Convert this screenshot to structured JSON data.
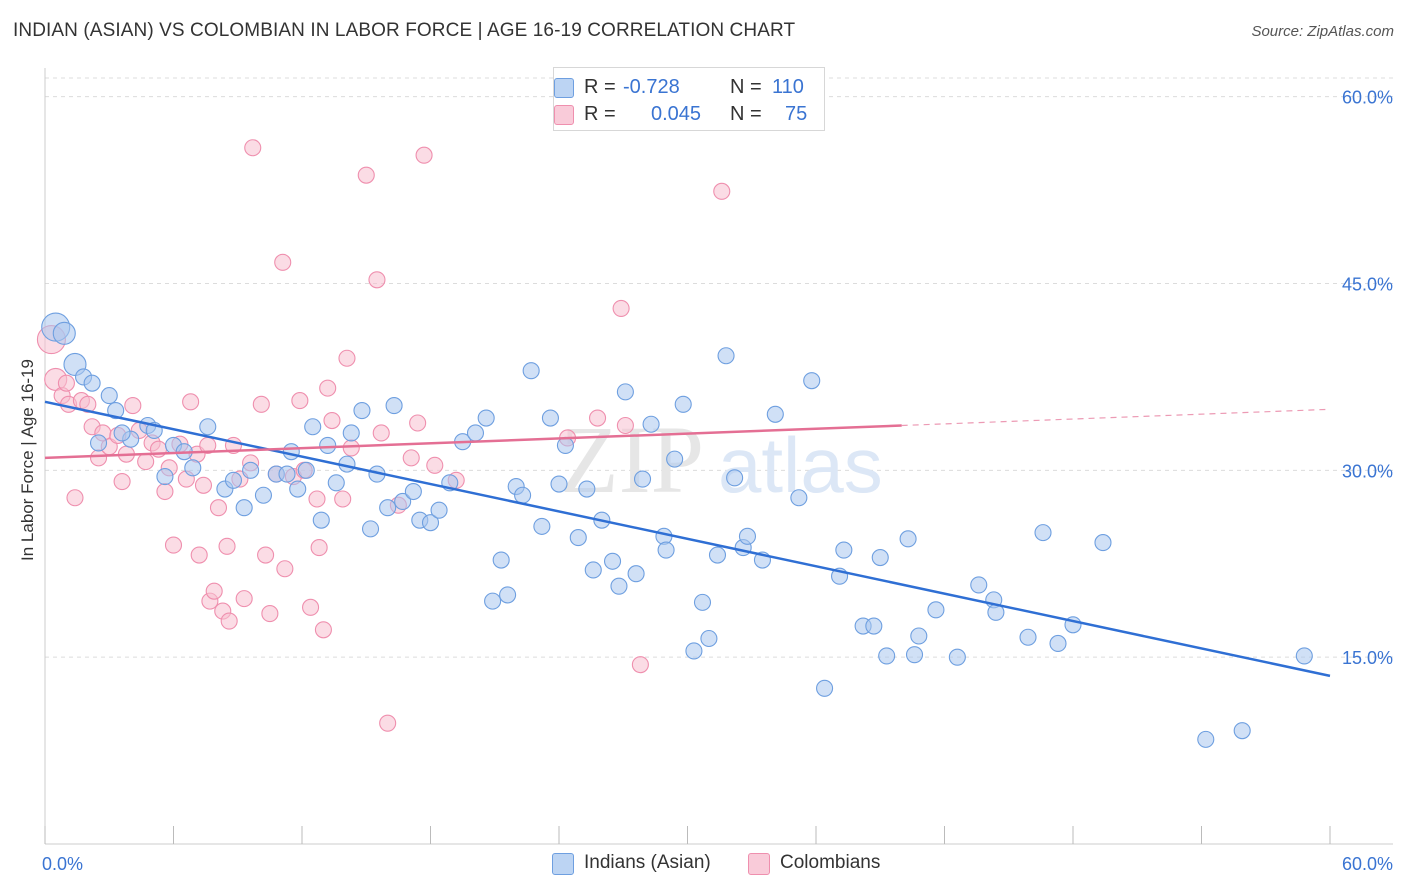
{
  "title": "INDIAN (ASIAN) VS COLOMBIAN IN LABOR FORCE | AGE 16-19 CORRELATION CHART",
  "source": "Source: ZipAtlas.com",
  "colors": {
    "blue_fill": "#a9c7ee",
    "blue_stroke": "#6e9fe0",
    "blue_line": "#2f6fd4",
    "pink_fill": "#f7bfd0",
    "pink_stroke": "#ef8fae",
    "pink_line": "#e46f94",
    "tick_label": "#3a74d2",
    "grid": "#dcdcdc"
  },
  "legend": {
    "r_label": "R =",
    "n_label": "N =",
    "rows": [
      {
        "r": "-0.728",
        "n": "110"
      },
      {
        "r": "0.045",
        "n": "75"
      }
    ]
  },
  "bottom_legend": [
    "Indians (Asian)",
    "Colombians"
  ],
  "watermark": {
    "part1": "ZIP",
    "part2": "atlas"
  },
  "chart_data": {
    "type": "scatter",
    "title": "INDIAN (ASIAN) VS COLOMBIAN IN LABOR FORCE | AGE 16-19 CORRELATION CHART",
    "xlabel": "",
    "ylabel": "In Labor Force | Age 16-19",
    "xlim": [
      0,
      60
    ],
    "ylim": [
      0,
      61.5
    ],
    "x_tick_labels": [
      "0.0%",
      "60.0%"
    ],
    "y_ticks": [
      15,
      30,
      45,
      60
    ],
    "y_tick_labels": [
      "15.0%",
      "30.0%",
      "45.0%",
      "60.0%"
    ],
    "grid": true,
    "series": [
      {
        "name": "Indians (Asian)",
        "r": -0.728,
        "n": 110,
        "trend": {
          "x": [
            0,
            60
          ],
          "y": [
            35.5,
            13.5
          ],
          "dashed_from": null
        },
        "points": [
          {
            "x": 0.5,
            "y": 41.5,
            "s": 3
          },
          {
            "x": 0.9,
            "y": 41,
            "s": 2
          },
          {
            "x": 1.4,
            "y": 38.5,
            "s": 2
          },
          {
            "x": 1.8,
            "y": 37.5,
            "s": 1
          },
          {
            "x": 2.2,
            "y": 37,
            "s": 1
          },
          {
            "x": 3,
            "y": 36,
            "s": 1
          },
          {
            "x": 3.3,
            "y": 34.8,
            "s": 1
          },
          {
            "x": 4.8,
            "y": 33.6,
            "s": 1
          },
          {
            "x": 5.1,
            "y": 33.2,
            "s": 1
          },
          {
            "x": 7.6,
            "y": 33.5,
            "s": 1
          },
          {
            "x": 2.5,
            "y": 32.2,
            "s": 1
          },
          {
            "x": 4,
            "y": 32.5,
            "s": 1
          },
          {
            "x": 6,
            "y": 32,
            "s": 1
          },
          {
            "x": 6.5,
            "y": 31.5,
            "s": 1
          },
          {
            "x": 3.6,
            "y": 33,
            "s": 1
          },
          {
            "x": 5.6,
            "y": 29.5,
            "s": 1
          },
          {
            "x": 6.9,
            "y": 30.2,
            "s": 1
          },
          {
            "x": 8.4,
            "y": 28.5,
            "s": 1
          },
          {
            "x": 8.8,
            "y": 29.2,
            "s": 1
          },
          {
            "x": 9.3,
            "y": 27,
            "s": 1
          },
          {
            "x": 9.6,
            "y": 30,
            "s": 1
          },
          {
            "x": 10.2,
            "y": 28,
            "s": 1
          },
          {
            "x": 10.8,
            "y": 29.7,
            "s": 1
          },
          {
            "x": 11.3,
            "y": 29.7,
            "s": 1
          },
          {
            "x": 11.5,
            "y": 31.5,
            "s": 1
          },
          {
            "x": 11.8,
            "y": 28.5,
            "s": 1
          },
          {
            "x": 12.2,
            "y": 30,
            "s": 1
          },
          {
            "x": 12.5,
            "y": 33.5,
            "s": 1
          },
          {
            "x": 12.9,
            "y": 26,
            "s": 1
          },
          {
            "x": 13.2,
            "y": 32,
            "s": 1
          },
          {
            "x": 13.6,
            "y": 29,
            "s": 1
          },
          {
            "x": 14.1,
            "y": 30.5,
            "s": 1
          },
          {
            "x": 14.3,
            "y": 33,
            "s": 1
          },
          {
            "x": 14.8,
            "y": 34.8,
            "s": 1
          },
          {
            "x": 15.2,
            "y": 25.3,
            "s": 1
          },
          {
            "x": 15.5,
            "y": 29.7,
            "s": 1
          },
          {
            "x": 16,
            "y": 27,
            "s": 1
          },
          {
            "x": 16.3,
            "y": 35.2,
            "s": 1
          },
          {
            "x": 16.7,
            "y": 27.5,
            "s": 1
          },
          {
            "x": 17.2,
            "y": 28.3,
            "s": 1
          },
          {
            "x": 17.5,
            "y": 26,
            "s": 1
          },
          {
            "x": 18,
            "y": 25.8,
            "s": 1
          },
          {
            "x": 18.4,
            "y": 26.8,
            "s": 1
          },
          {
            "x": 18.9,
            "y": 29,
            "s": 1
          },
          {
            "x": 19.5,
            "y": 32.3,
            "s": 1
          },
          {
            "x": 20.1,
            "y": 33,
            "s": 1
          },
          {
            "x": 20.6,
            "y": 34.2,
            "s": 1
          },
          {
            "x": 20.9,
            "y": 19.5,
            "s": 1
          },
          {
            "x": 21.3,
            "y": 22.8,
            "s": 1
          },
          {
            "x": 21.6,
            "y": 20,
            "s": 1
          },
          {
            "x": 22,
            "y": 28.7,
            "s": 1
          },
          {
            "x": 22.3,
            "y": 28,
            "s": 1
          },
          {
            "x": 22.7,
            "y": 38,
            "s": 1
          },
          {
            "x": 23.2,
            "y": 25.5,
            "s": 1
          },
          {
            "x": 23.6,
            "y": 34.2,
            "s": 1
          },
          {
            "x": 24,
            "y": 28.9,
            "s": 1
          },
          {
            "x": 24.3,
            "y": 32,
            "s": 1
          },
          {
            "x": 24.9,
            "y": 24.6,
            "s": 1
          },
          {
            "x": 25.3,
            "y": 28.5,
            "s": 1
          },
          {
            "x": 25.6,
            "y": 22,
            "s": 1
          },
          {
            "x": 26,
            "y": 26,
            "s": 1
          },
          {
            "x": 26.5,
            "y": 22.7,
            "s": 1
          },
          {
            "x": 26.8,
            "y": 20.7,
            "s": 1
          },
          {
            "x": 27.1,
            "y": 36.3,
            "s": 1
          },
          {
            "x": 27.6,
            "y": 21.7,
            "s": 1
          },
          {
            "x": 27.9,
            "y": 29.3,
            "s": 1
          },
          {
            "x": 28.3,
            "y": 33.7,
            "s": 1
          },
          {
            "x": 28.9,
            "y": 24.7,
            "s": 1
          },
          {
            "x": 29,
            "y": 23.6,
            "s": 1
          },
          {
            "x": 29.4,
            "y": 30.9,
            "s": 1
          },
          {
            "x": 29.8,
            "y": 35.3,
            "s": 1
          },
          {
            "x": 30.3,
            "y": 15.5,
            "s": 1
          },
          {
            "x": 30.7,
            "y": 19.4,
            "s": 1
          },
          {
            "x": 31,
            "y": 16.5,
            "s": 1
          },
          {
            "x": 31.4,
            "y": 23.2,
            "s": 1
          },
          {
            "x": 31.8,
            "y": 39.2,
            "s": 1
          },
          {
            "x": 32.2,
            "y": 29.4,
            "s": 1
          },
          {
            "x": 32.6,
            "y": 23.8,
            "s": 1
          },
          {
            "x": 32.8,
            "y": 24.7,
            "s": 1
          },
          {
            "x": 33.5,
            "y": 22.8,
            "s": 1
          },
          {
            "x": 34.1,
            "y": 34.5,
            "s": 1
          },
          {
            "x": 35.2,
            "y": 27.8,
            "s": 1
          },
          {
            "x": 35.8,
            "y": 37.2,
            "s": 1
          },
          {
            "x": 36.4,
            "y": 12.5,
            "s": 1
          },
          {
            "x": 37.1,
            "y": 21.5,
            "s": 1
          },
          {
            "x": 37.3,
            "y": 23.6,
            "s": 1
          },
          {
            "x": 38.2,
            "y": 17.5,
            "s": 1
          },
          {
            "x": 38.7,
            "y": 17.5,
            "s": 1
          },
          {
            "x": 39,
            "y": 23,
            "s": 1
          },
          {
            "x": 39.3,
            "y": 15.1,
            "s": 1
          },
          {
            "x": 40.3,
            "y": 24.5,
            "s": 1
          },
          {
            "x": 40.6,
            "y": 15.2,
            "s": 1
          },
          {
            "x": 40.8,
            "y": 16.7,
            "s": 1
          },
          {
            "x": 41.6,
            "y": 18.8,
            "s": 1
          },
          {
            "x": 42.6,
            "y": 15,
            "s": 1
          },
          {
            "x": 43.6,
            "y": 20.8,
            "s": 1
          },
          {
            "x": 44.3,
            "y": 19.6,
            "s": 1
          },
          {
            "x": 44.4,
            "y": 18.6,
            "s": 1
          },
          {
            "x": 45.9,
            "y": 16.6,
            "s": 1
          },
          {
            "x": 46.6,
            "y": 25,
            "s": 1
          },
          {
            "x": 47.3,
            "y": 16.1,
            "s": 1
          },
          {
            "x": 48,
            "y": 17.6,
            "s": 1
          },
          {
            "x": 49.4,
            "y": 24.2,
            "s": 1
          },
          {
            "x": 54.2,
            "y": 8.4,
            "s": 1
          },
          {
            "x": 55.9,
            "y": 9.1,
            "s": 1
          },
          {
            "x": 58.8,
            "y": 15.1,
            "s": 1
          }
        ]
      },
      {
        "name": "Colombians",
        "r": 0.045,
        "n": 75,
        "trend": {
          "x": [
            0,
            60
          ],
          "y": [
            31,
            34.9
          ],
          "dashed_from": 40
        },
        "points": [
          {
            "x": 0.3,
            "y": 40.5,
            "s": 3
          },
          {
            "x": 0.5,
            "y": 37.3,
            "s": 2
          },
          {
            "x": 0.8,
            "y": 36,
            "s": 1
          },
          {
            "x": 1,
            "y": 37,
            "s": 1
          },
          {
            "x": 1.1,
            "y": 35.3,
            "s": 1
          },
          {
            "x": 1.4,
            "y": 27.8,
            "s": 1
          },
          {
            "x": 1.7,
            "y": 35.6,
            "s": 1
          },
          {
            "x": 2,
            "y": 35.3,
            "s": 1
          },
          {
            "x": 2.2,
            "y": 33.5,
            "s": 1
          },
          {
            "x": 2.5,
            "y": 31,
            "s": 1
          },
          {
            "x": 2.7,
            "y": 33,
            "s": 1
          },
          {
            "x": 3,
            "y": 31.9,
            "s": 1
          },
          {
            "x": 3.4,
            "y": 32.8,
            "s": 1
          },
          {
            "x": 3.6,
            "y": 29.1,
            "s": 1
          },
          {
            "x": 3.8,
            "y": 31.3,
            "s": 1
          },
          {
            "x": 4.1,
            "y": 35.2,
            "s": 1
          },
          {
            "x": 4.4,
            "y": 33.2,
            "s": 1
          },
          {
            "x": 4.7,
            "y": 30.7,
            "s": 1
          },
          {
            "x": 5,
            "y": 32.2,
            "s": 1
          },
          {
            "x": 5.3,
            "y": 31.7,
            "s": 1
          },
          {
            "x": 5.6,
            "y": 28.3,
            "s": 1
          },
          {
            "x": 5.8,
            "y": 30.2,
            "s": 1
          },
          {
            "x": 6,
            "y": 24,
            "s": 1
          },
          {
            "x": 6.3,
            "y": 32.1,
            "s": 1
          },
          {
            "x": 6.6,
            "y": 29.3,
            "s": 1
          },
          {
            "x": 6.8,
            "y": 35.5,
            "s": 1
          },
          {
            "x": 7.1,
            "y": 31.3,
            "s": 1
          },
          {
            "x": 7.2,
            "y": 23.2,
            "s": 1
          },
          {
            "x": 7.4,
            "y": 28.8,
            "s": 1
          },
          {
            "x": 7.6,
            "y": 32,
            "s": 1
          },
          {
            "x": 7.7,
            "y": 19.5,
            "s": 1
          },
          {
            "x": 7.9,
            "y": 20.3,
            "s": 1
          },
          {
            "x": 8.1,
            "y": 27,
            "s": 1
          },
          {
            "x": 8.3,
            "y": 18.7,
            "s": 1
          },
          {
            "x": 8.5,
            "y": 23.9,
            "s": 1
          },
          {
            "x": 8.6,
            "y": 17.9,
            "s": 1
          },
          {
            "x": 8.8,
            "y": 32,
            "s": 1
          },
          {
            "x": 9.1,
            "y": 29.3,
            "s": 1
          },
          {
            "x": 9.3,
            "y": 19.7,
            "s": 1
          },
          {
            "x": 9.6,
            "y": 30.6,
            "s": 1
          },
          {
            "x": 9.7,
            "y": 55.9,
            "s": 1
          },
          {
            "x": 10.1,
            "y": 35.3,
            "s": 1
          },
          {
            "x": 10.3,
            "y": 23.2,
            "s": 1
          },
          {
            "x": 10.5,
            "y": 18.5,
            "s": 1
          },
          {
            "x": 10.8,
            "y": 29.7,
            "s": 1
          },
          {
            "x": 11.1,
            "y": 46.7,
            "s": 1
          },
          {
            "x": 11.2,
            "y": 22.1,
            "s": 1
          },
          {
            "x": 11.6,
            "y": 29.5,
            "s": 1
          },
          {
            "x": 11.9,
            "y": 35.6,
            "s": 1
          },
          {
            "x": 12.1,
            "y": 30,
            "s": 1
          },
          {
            "x": 12.4,
            "y": 19,
            "s": 1
          },
          {
            "x": 12.7,
            "y": 27.7,
            "s": 1
          },
          {
            "x": 12.8,
            "y": 23.8,
            "s": 1
          },
          {
            "x": 13,
            "y": 17.2,
            "s": 1
          },
          {
            "x": 13.2,
            "y": 36.6,
            "s": 1
          },
          {
            "x": 13.4,
            "y": 34,
            "s": 1
          },
          {
            "x": 13.9,
            "y": 27.7,
            "s": 1
          },
          {
            "x": 14.1,
            "y": 39,
            "s": 1
          },
          {
            "x": 14.3,
            "y": 31.8,
            "s": 1
          },
          {
            "x": 15,
            "y": 53.7,
            "s": 1
          },
          {
            "x": 15.5,
            "y": 45.3,
            "s": 1
          },
          {
            "x": 15.7,
            "y": 33,
            "s": 1
          },
          {
            "x": 16,
            "y": 9.7,
            "s": 1
          },
          {
            "x": 16.5,
            "y": 27.2,
            "s": 1
          },
          {
            "x": 17.1,
            "y": 31,
            "s": 1
          },
          {
            "x": 17.4,
            "y": 33.8,
            "s": 1
          },
          {
            "x": 17.7,
            "y": 55.3,
            "s": 1
          },
          {
            "x": 18.2,
            "y": 30.4,
            "s": 1
          },
          {
            "x": 19.2,
            "y": 29.2,
            "s": 1
          },
          {
            "x": 24.4,
            "y": 32.6,
            "s": 1
          },
          {
            "x": 25.8,
            "y": 34.2,
            "s": 1
          },
          {
            "x": 26.9,
            "y": 43,
            "s": 1
          },
          {
            "x": 27.1,
            "y": 33.6,
            "s": 1
          },
          {
            "x": 27.8,
            "y": 14.4,
            "s": 1
          },
          {
            "x": 31.6,
            "y": 52.4,
            "s": 1
          }
        ]
      }
    ]
  }
}
